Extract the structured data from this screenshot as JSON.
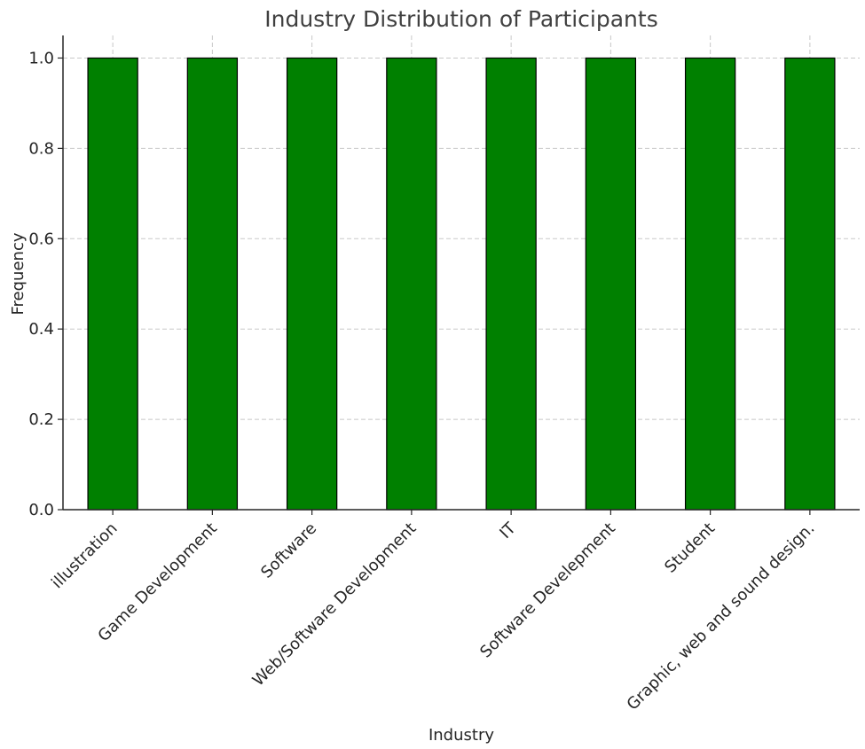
{
  "chart_data": {
    "type": "bar",
    "title": "Industry Distribution of Participants",
    "xlabel": "Industry",
    "ylabel": "Frequency",
    "categories": [
      "illustration",
      "Game Development",
      "Software",
      "Web/Software Development",
      "IT",
      "Software Develepment",
      "Student",
      "Graphic, web and sound design."
    ],
    "values": [
      1.0,
      1.0,
      1.0,
      1.0,
      1.0,
      1.0,
      1.0,
      1.0
    ],
    "ylim": [
      0,
      1.05
    ],
    "yticks": [
      "0.0",
      "0.2",
      "0.4",
      "0.6",
      "0.8",
      "1.0"
    ],
    "grid": true,
    "bar_color": "#008000",
    "edge_color": "#000000"
  }
}
